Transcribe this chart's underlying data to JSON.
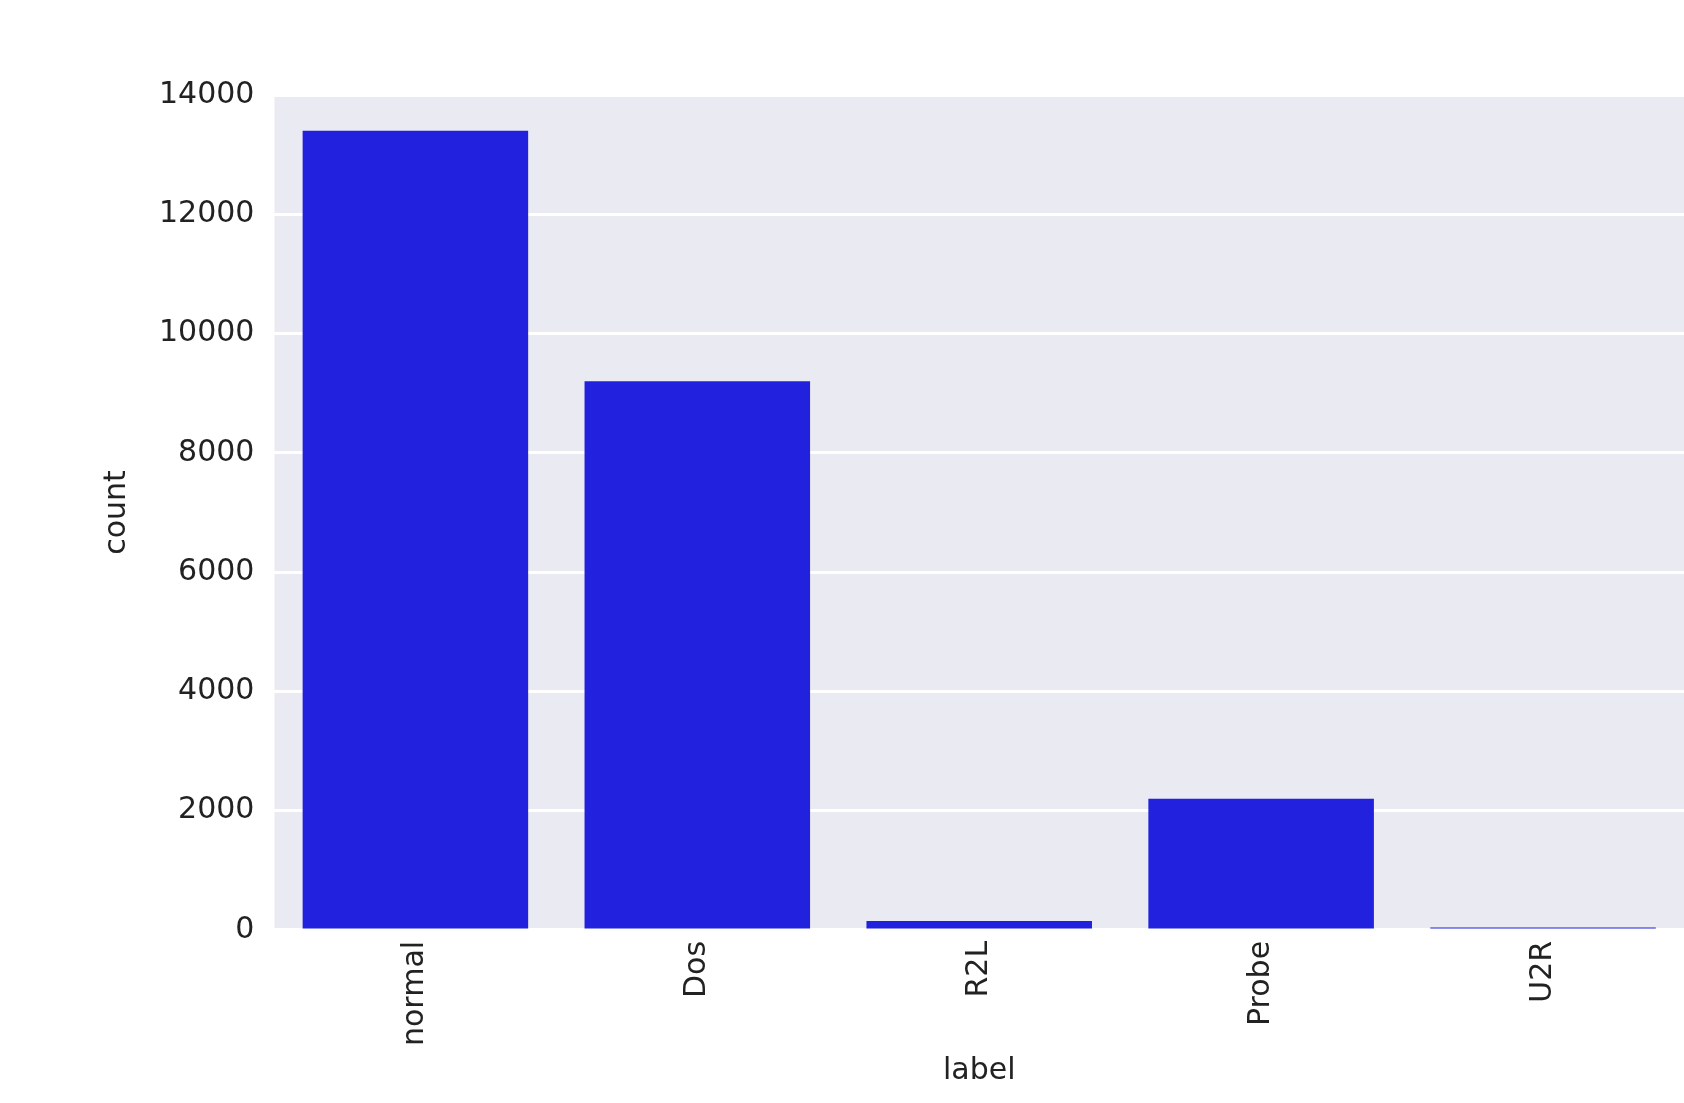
{
  "chart_data": {
    "type": "bar",
    "xlabel": "label",
    "ylabel": "count",
    "categories": [
      "normal",
      "Dos",
      "R2L",
      "Probe",
      "U2R"
    ],
    "values": [
      13400,
      9200,
      150,
      2200,
      40
    ],
    "color": "#2121de",
    "ylim": [
      0,
      14000
    ],
    "yticks": [
      0,
      2000,
      4000,
      6000,
      8000,
      10000,
      12000,
      14000
    ],
    "grid": "y"
  }
}
